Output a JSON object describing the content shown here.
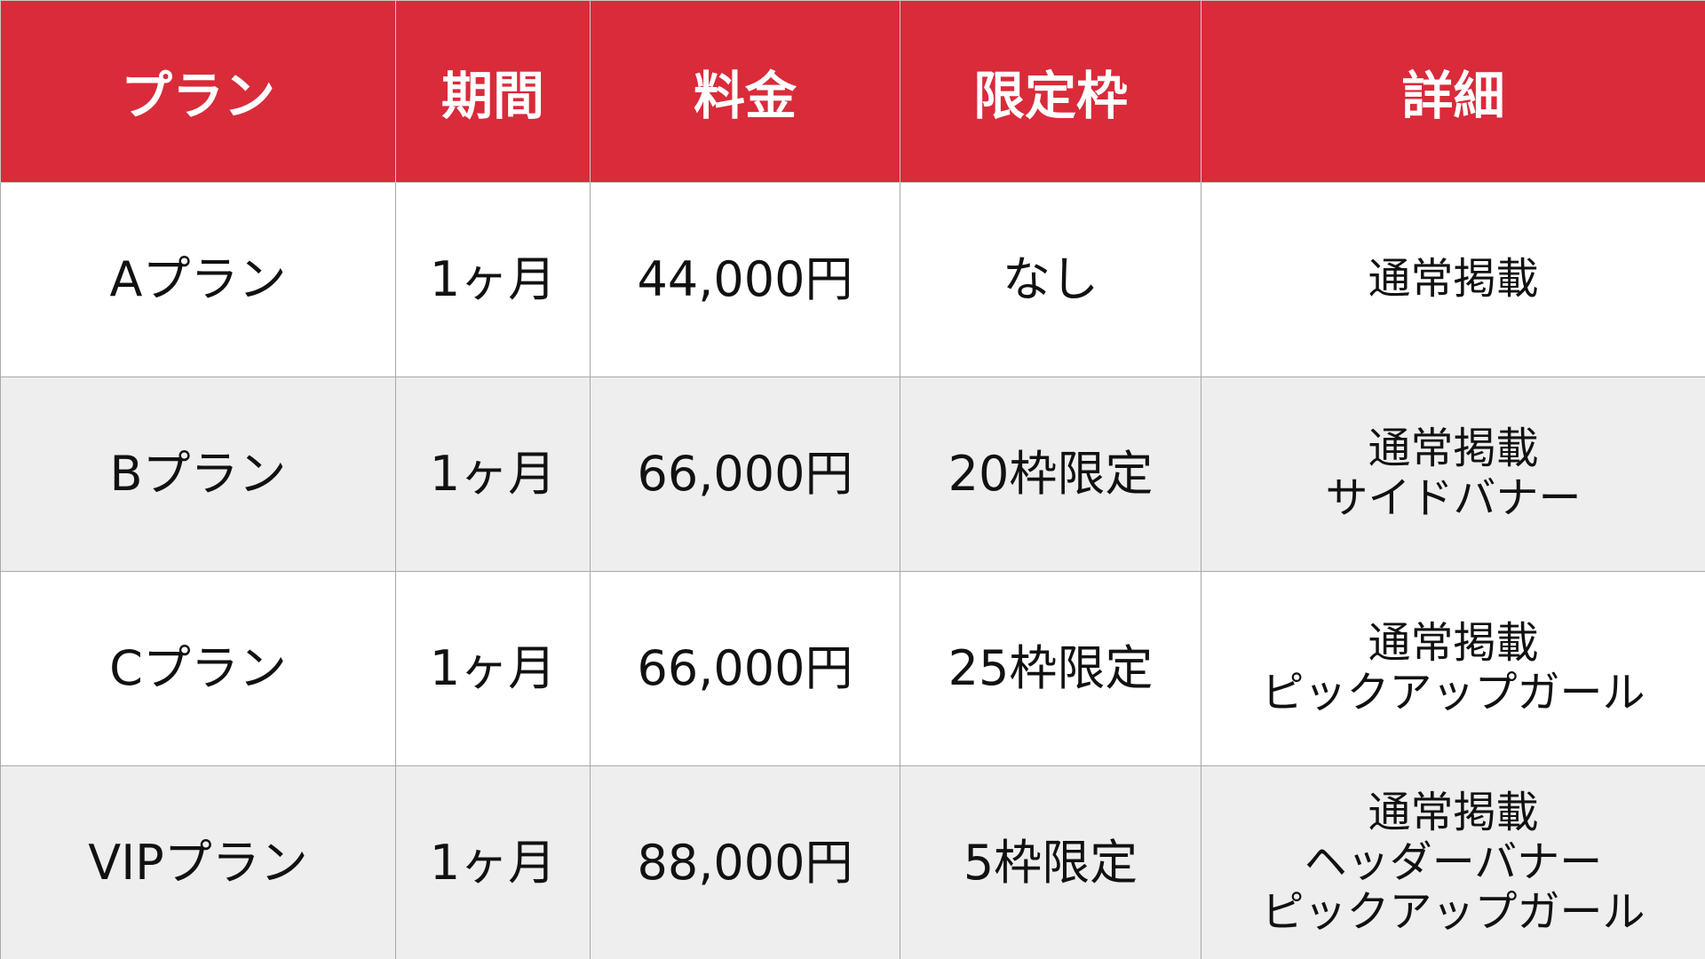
{
  "colors": {
    "header": "#d92b3a",
    "row_alt": "#eeeeee"
  },
  "headers": [
    "プラン",
    "期間",
    "料金",
    "限定枠",
    "詳細"
  ],
  "rows": [
    {
      "plan": "Aプラン",
      "period": "1ヶ月",
      "price": "44,000円",
      "limit": "なし",
      "details": [
        "通常掲載"
      ]
    },
    {
      "plan": "Bプラン",
      "period": "1ヶ月",
      "price": "66,000円",
      "limit": "20枠限定",
      "details": [
        "通常掲載",
        "サイドバナー"
      ]
    },
    {
      "plan": "Cプラン",
      "period": "1ヶ月",
      "price": "66,000円",
      "limit": "25枠限定",
      "details": [
        "通常掲載",
        "ピックアップガール"
      ]
    },
    {
      "plan": "VIPプラン",
      "period": "1ヶ月",
      "price": "88,000円",
      "limit": "5枠限定",
      "details": [
        "通常掲載",
        "ヘッダーバナー",
        "ピックアップガール"
      ]
    }
  ]
}
